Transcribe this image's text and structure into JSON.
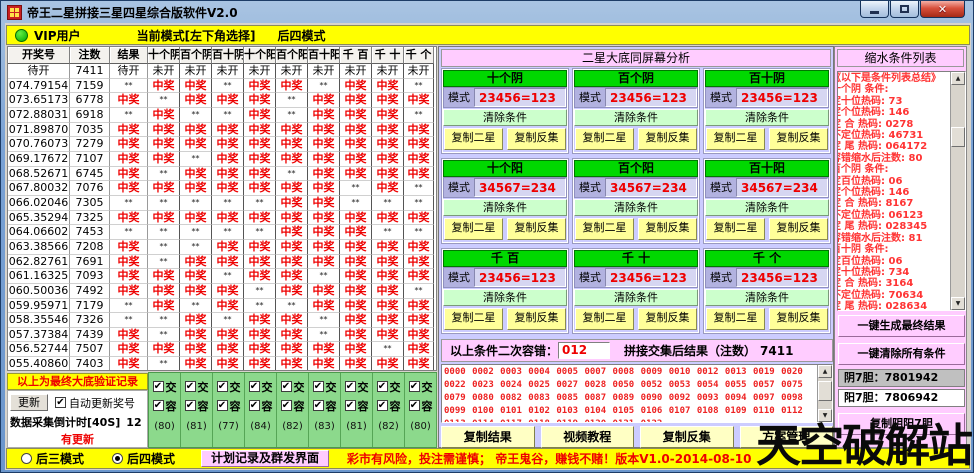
{
  "window": {
    "title": "帝王二星拼接三星四星综合版软件V2.0"
  },
  "topbar": {
    "vip_label": "VIP用户",
    "mode_hint": "当前模式[左下角选择]",
    "mode_value": "后四模式"
  },
  "table": {
    "headers": [
      "开奖号",
      "注数",
      "结果",
      "十个阴",
      "百个阴",
      "百十阴",
      "十个阳",
      "百个阳",
      "百十阳",
      "千 百",
      "千 十",
      "千 个"
    ],
    "rows": [
      [
        "待开",
        "7411",
        "待开",
        "未开",
        "未开",
        "未开",
        "未开",
        "未开",
        "未开",
        "未开",
        "未开",
        "未开"
      ],
      [
        "074.79154",
        "7159",
        "**",
        "中奖",
        "中奖",
        "**",
        "中奖",
        "中奖",
        "**",
        "中奖",
        "中奖",
        "**"
      ],
      [
        "073.65173",
        "6778",
        "中奖",
        "**",
        "中奖",
        "中奖",
        "中奖",
        "**",
        "中奖",
        "中奖",
        "中奖",
        "中奖"
      ],
      [
        "072.88031",
        "6918",
        "**",
        "中奖",
        "**",
        "**",
        "中奖",
        "**",
        "中奖",
        "中奖",
        "中奖",
        "**"
      ],
      [
        "071.89870",
        "7035",
        "中奖",
        "中奖",
        "中奖",
        "中奖",
        "中奖",
        "中奖",
        "中奖",
        "中奖",
        "中奖",
        "中奖"
      ],
      [
        "070.76073",
        "7279",
        "中奖",
        "中奖",
        "中奖",
        "中奖",
        "中奖",
        "中奖",
        "中奖",
        "中奖",
        "中奖",
        "中奖"
      ],
      [
        "069.17672",
        "7107",
        "中奖",
        "中奖",
        "**",
        "中奖",
        "中奖",
        "中奖",
        "中奖",
        "中奖",
        "中奖",
        "中奖"
      ],
      [
        "068.52671",
        "6745",
        "中奖",
        "**",
        "中奖",
        "中奖",
        "中奖",
        "**",
        "中奖",
        "中奖",
        "中奖",
        "中奖"
      ],
      [
        "067.80032",
        "7076",
        "中奖",
        "中奖",
        "中奖",
        "中奖",
        "中奖",
        "中奖",
        "中奖",
        "**",
        "中奖",
        "**"
      ],
      [
        "066.02046",
        "7305",
        "**",
        "**",
        "**",
        "**",
        "**",
        "中奖",
        "中奖",
        "**",
        "**",
        "**"
      ],
      [
        "065.35294",
        "7325",
        "中奖",
        "中奖",
        "中奖",
        "中奖",
        "中奖",
        "中奖",
        "中奖",
        "中奖",
        "中奖",
        "中奖"
      ],
      [
        "064.06602",
        "7453",
        "**",
        "**",
        "**",
        "**",
        "**",
        "中奖",
        "中奖",
        "中奖",
        "**",
        "**"
      ],
      [
        "063.38566",
        "7208",
        "中奖",
        "**",
        "**",
        "中奖",
        "中奖",
        "中奖",
        "中奖",
        "中奖",
        "中奖",
        "中奖"
      ],
      [
        "062.82761",
        "7691",
        "中奖",
        "**",
        "中奖",
        "中奖",
        "中奖",
        "中奖",
        "中奖",
        "中奖",
        "中奖",
        "中奖"
      ],
      [
        "061.16325",
        "7093",
        "中奖",
        "中奖",
        "中奖",
        "**",
        "中奖",
        "中奖",
        "**",
        "中奖",
        "中奖",
        "中奖"
      ],
      [
        "060.50036",
        "7492",
        "中奖",
        "中奖",
        "中奖",
        "中奖",
        "**",
        "中奖",
        "中奖",
        "中奖",
        "中奖",
        "**"
      ],
      [
        "059.95971",
        "7179",
        "**",
        "中奖",
        "**",
        "中奖",
        "**",
        "**",
        "中奖",
        "中奖",
        "中奖",
        "中奖"
      ],
      [
        "058.35546",
        "7326",
        "**",
        "**",
        "中奖",
        "**",
        "中奖",
        "中奖",
        "**",
        "中奖",
        "中奖",
        "中奖"
      ],
      [
        "057.37384",
        "7439",
        "中奖",
        "**",
        "中奖",
        "中奖",
        "中奖",
        "中奖",
        "**",
        "中奖",
        "中奖",
        "中奖"
      ],
      [
        "056.52744",
        "7507",
        "中奖",
        "中奖",
        "中奖",
        "中奖",
        "中奖",
        "中奖",
        "中奖",
        "中奖",
        "**",
        "中奖"
      ],
      [
        "055.40860",
        "7403",
        "中奖",
        "**",
        "中奖",
        "中奖",
        "中奖",
        "中奖",
        "中奖",
        "中奖",
        "中奖",
        "中奖"
      ]
    ]
  },
  "verify": {
    "label": "以上为最终大底验证记录",
    "update_button": "更新",
    "auto_update_label": "自动更新奖号",
    "countdown_label": "数据采集倒计时[40S]",
    "countdown_value": "12",
    "status": "有更新"
  },
  "filters": {
    "jiao_label": "交",
    "rong_label": "容",
    "counts": [
      "(80)",
      "(81)",
      "(77)",
      "(84)",
      "(82)",
      "(83)",
      "(81)",
      "(82)",
      "(80)"
    ]
  },
  "analysis": {
    "title": "二星大底同屏幕分析",
    "mode_label": "模式",
    "clear_button": "清除条件",
    "copy2_button": "复制二星",
    "copyinv_button": "复制反集",
    "cards": [
      {
        "name": "十个阴",
        "pattern": "23456=123"
      },
      {
        "name": "百个阴",
        "pattern": "23456=123"
      },
      {
        "name": "百十阴",
        "pattern": "23456=123"
      },
      {
        "name": "十个阳",
        "pattern": "34567=234"
      },
      {
        "name": "百个阳",
        "pattern": "34567=234"
      },
      {
        "name": "百十阳",
        "pattern": "34567=234"
      },
      {
        "name": "千 百",
        "pattern": "23456=123"
      },
      {
        "name": "千 十",
        "pattern": "23456=123"
      },
      {
        "name": "千 个",
        "pattern": "23456=123"
      }
    ]
  },
  "tolerance": {
    "label": "以上条件二次容错：",
    "value": "012",
    "result_label": "拼接交集后结果（注数）",
    "result_value": "7411"
  },
  "results": {
    "text": "0000 0002 0003 0004 0005 0007 0008 0009 0010 0012 0013 0019 0020 0022 0023 0024 0025 0027 0028 0050 0052 0053 0054 0055 0057 0075 0079 0080 0082 0083 0085 0087 0089 0090 0092 0093 0094 0097 0098 0099 0100 0101 0102 0103 0104 0105 0106 0107 0108 0109 0110 0112 0113 0114 0117 0118 0119 0120 0121 0122"
  },
  "actions": {
    "buttons": [
      "复制结果",
      "视频教程",
      "复制反集",
      "方案管理"
    ]
  },
  "shrink": {
    "title": "缩水条件列表",
    "lines": [
      "《以下是条件列表总结》",
      "十个阴 条件:",
      "定十位热码: 73",
      "定个位热码: 146",
      "定 合 热码: 0278",
      "不定位热码: 46731",
      "定 尾 热码: 064172",
      "容错缩水后注数: 80",
      "百个阴 条件:",
      "定百位热码: 06",
      "定个位热码: 146",
      "定 合 热码: 8167",
      "不定位热码: 06123",
      "定 尾 热码: 028345",
      "容错缩水后注数: 81",
      "百十阴 条件:",
      "定百位热码: 06",
      "定十位热码: 734",
      "定 合 热码: 3164",
      "不定位热码: 70634",
      "定 尾 热码: 028634"
    ],
    "generate_button": "一键生成最终结果",
    "clear_all_button": "一键清除所有条件",
    "yin_label": "阴7胆：",
    "yin_value": "7801942",
    "yang_label": "阳7胆：",
    "yang_value": "7806942",
    "copy_button": "复制阴阳7胆"
  },
  "bottombar": {
    "mode3_label": "后三模式",
    "mode4_label": "后四模式",
    "plan_button": "计划记录及群发界面",
    "warning": "彩市有风险，投注需谨慎； 帝王鬼谷，赚钱不赌！版本V1.0-2014-08-10"
  },
  "watermark": "天空破解站",
  "colors": {
    "title_red": "#ee0000",
    "card_green": "#00d800",
    "panel_lavender": "#ccccff",
    "panel_pink": "#ffccff",
    "bar_yellow": "#ffff00",
    "filter_green": "#8cd98c"
  }
}
